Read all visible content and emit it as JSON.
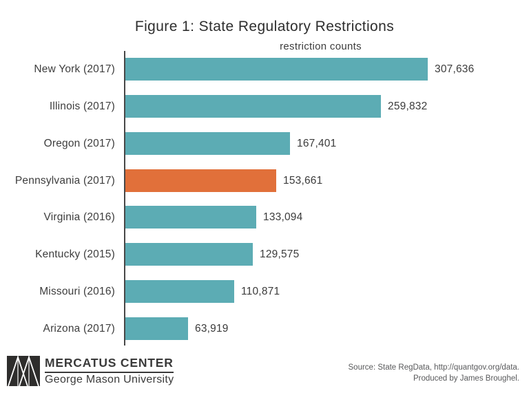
{
  "title": "Figure 1: State Regulatory Restrictions",
  "chart_data": {
    "type": "bar",
    "orientation": "horizontal",
    "title": "Figure 1: State Regulatory Restrictions",
    "subtitle": "restriction counts",
    "xlabel": "",
    "ylabel": "",
    "grid": false,
    "legend": "none",
    "xlim": [
      0,
      340000
    ],
    "categories": [
      "New York (2017)",
      "Illinois (2017)",
      "Oregon (2017)",
      "Pennsylvania (2017)",
      "Virginia (2016)",
      "Kentucky (2015)",
      "Missouri (2016)",
      "Arizona (2017)"
    ],
    "values": [
      307636,
      259832,
      167401,
      153661,
      133094,
      129575,
      110871,
      63919
    ],
    "value_labels": [
      "307,636",
      "259,832",
      "167,401",
      "153,661",
      "133,094",
      "129,575",
      "110,871",
      "63,919"
    ],
    "highlight_category": "Pennsylvania (2017)",
    "colors": {
      "bar": "#5cacb4",
      "highlight": "#e1703a",
      "axis_line": "#474747"
    }
  },
  "footer": {
    "logo_title": "MERCATUS CENTER",
    "logo_subtitle": "George Mason University",
    "source_line1": "Source: State RegData, http://quantgov.org/data.",
    "source_line2": "Produced by James Broughel."
  }
}
